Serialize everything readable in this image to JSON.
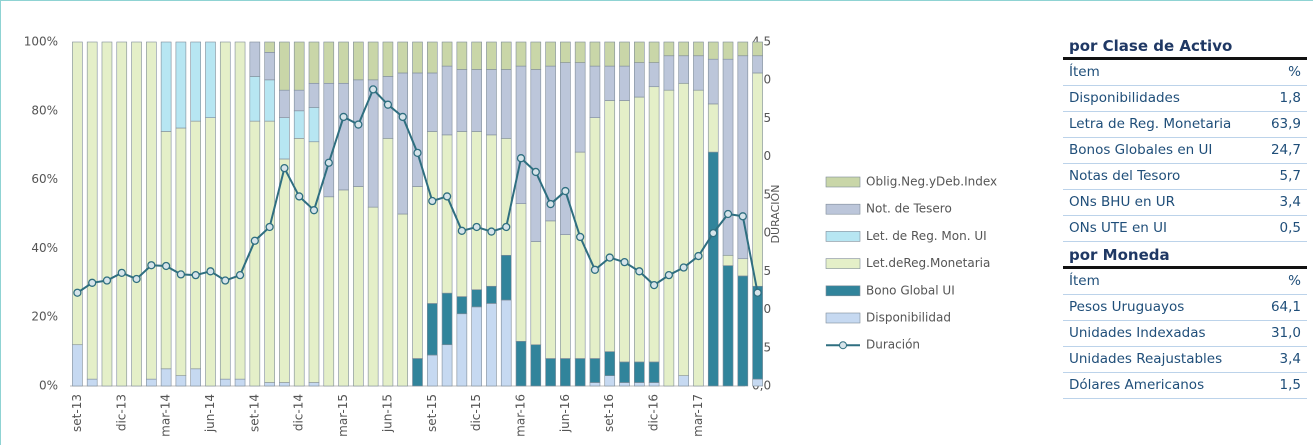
{
  "chart_data": {
    "type": "bar",
    "categories": [
      "set-13",
      null,
      null,
      "dic-13",
      null,
      null,
      "mar-14",
      null,
      null,
      "jun-14",
      null,
      null,
      "set-14",
      null,
      null,
      "dic-14",
      null,
      null,
      "mar-15",
      null,
      null,
      "jun-15",
      null,
      null,
      "set-15",
      null,
      null,
      "dic-15",
      null,
      null,
      "mar-16",
      null,
      null,
      "jun-16",
      null,
      null,
      "set-16",
      null,
      null,
      "dic-16",
      null,
      null,
      "mar-17",
      null,
      null,
      null,
      null
    ],
    "series": [
      {
        "name": "Disponibilidad",
        "color": "#c6d9f1",
        "values": [
          12,
          2,
          0,
          0,
          0,
          2,
          5,
          3,
          5,
          0,
          2,
          2,
          0,
          1,
          1,
          0,
          1,
          0,
          0,
          0,
          0,
          0,
          0,
          0,
          9,
          12,
          21,
          23,
          24,
          25,
          0,
          0,
          0,
          0,
          0,
          1,
          3,
          1,
          1,
          1,
          0,
          3,
          0,
          0,
          0,
          0,
          2
        ]
      },
      {
        "name": "Bono Global UI",
        "color": "#31849b",
        "values": [
          0,
          0,
          0,
          0,
          0,
          0,
          0,
          0,
          0,
          0,
          0,
          0,
          0,
          0,
          0,
          0,
          0,
          0,
          0,
          0,
          0,
          0,
          0,
          8,
          15,
          15,
          5,
          5,
          5,
          13,
          13,
          12,
          8,
          8,
          8,
          7,
          7,
          6,
          6,
          6,
          0,
          0,
          0,
          68,
          35,
          32,
          27
        ]
      },
      {
        "name": "Let.deReg.Monetaria",
        "color": "#e4efc8",
        "values": [
          88,
          98,
          100,
          100,
          100,
          98,
          69,
          72,
          72,
          78,
          98,
          98,
          77,
          76,
          65,
          72,
          70,
          55,
          57,
          58,
          52,
          72,
          50,
          50,
          50,
          46,
          48,
          46,
          44,
          34,
          40,
          30,
          40,
          36,
          60,
          70,
          73,
          76,
          77,
          80,
          86,
          85,
          86,
          14,
          3,
          5,
          62
        ]
      },
      {
        "name": "Let. de Reg. Mon. UI",
        "color": "#b7e6f2",
        "values": [
          0,
          0,
          0,
          0,
          0,
          0,
          26,
          25,
          23,
          22,
          0,
          0,
          13,
          12,
          12,
          8,
          10,
          0,
          0,
          0,
          0,
          0,
          0,
          0,
          0,
          0,
          0,
          0,
          0,
          0,
          0,
          0,
          0,
          0,
          0,
          0,
          0,
          0,
          0,
          0,
          0,
          0,
          0,
          0,
          0,
          0,
          0
        ]
      },
      {
        "name": "Not. de Tesero",
        "color": "#bcc6da",
        "values": [
          0,
          0,
          0,
          0,
          0,
          0,
          0,
          0,
          0,
          0,
          0,
          0,
          10,
          8,
          8,
          6,
          7,
          33,
          31,
          31,
          37,
          18,
          41,
          33,
          17,
          20,
          18,
          18,
          19,
          20,
          40,
          50,
          45,
          50,
          26,
          15,
          10,
          10,
          10,
          7,
          10,
          8,
          10,
          13,
          57,
          59,
          5
        ]
      },
      {
        "name": "Oblig.Neg.yDeb.Index",
        "color": "#c9d6a8",
        "values": [
          0,
          0,
          0,
          0,
          0,
          0,
          0,
          0,
          0,
          0,
          0,
          0,
          0,
          3,
          14,
          14,
          12,
          12,
          12,
          11,
          11,
          10,
          9,
          9,
          9,
          7,
          8,
          8,
          8,
          8,
          7,
          8,
          7,
          6,
          6,
          7,
          7,
          7,
          6,
          6,
          4,
          4,
          4,
          5,
          5,
          4,
          4
        ]
      },
      {
        "name": "Duración",
        "color": "#2f6f80",
        "axis": "y2",
        "values": [
          1.22,
          1.35,
          1.38,
          1.48,
          1.4,
          1.58,
          1.57,
          1.46,
          1.45,
          1.5,
          1.38,
          1.45,
          1.9,
          2.08,
          2.85,
          2.48,
          2.3,
          2.92,
          3.52,
          3.42,
          3.88,
          3.68,
          3.52,
          3.05,
          2.42,
          2.48,
          2.03,
          2.08,
          2.02,
          2.08,
          2.98,
          2.8,
          2.38,
          2.55,
          1.95,
          1.52,
          1.68,
          1.62,
          1.5,
          1.32,
          1.45,
          1.55,
          1.7,
          2.0,
          2.25,
          2.22,
          1.22
        ]
      }
    ],
    "y2label": "DURACIÓN",
    "ylim": [
      0,
      100
    ],
    "yticks": [
      {
        "value": 0,
        "label": "0%"
      },
      {
        "value": 20,
        "label": "20%"
      },
      {
        "value": 40,
        "label": "40%"
      },
      {
        "value": 60,
        "label": "60%"
      },
      {
        "value": 80,
        "label": "80%"
      },
      {
        "value": 100,
        "label": "100%"
      }
    ],
    "y2lim": [
      0,
      4.5
    ],
    "y2ticks": [
      {
        "value": 0,
        "label": "0,0"
      },
      {
        "value": 0.5,
        "label": "0,5"
      },
      {
        "value": 1,
        "label": "1,0"
      },
      {
        "value": 1.5,
        "label": "1,5"
      },
      {
        "value": 2,
        "label": "2,0"
      },
      {
        "value": 2.5,
        "label": "2,5"
      },
      {
        "value": 3,
        "label": "3,0"
      },
      {
        "value": 3.5,
        "label": "3,5"
      },
      {
        "value": 4,
        "label": "4,0"
      },
      {
        "value": 4.5,
        "label": "4,5"
      }
    ],
    "grid": false,
    "legend": "right"
  },
  "tables": [
    {
      "title": "por Clase de Activo",
      "header": [
        "Ítem",
        "%"
      ],
      "rows": [
        [
          "Disponibilidades",
          "1,8"
        ],
        [
          "Letra de Reg. Monetaria",
          "63,9"
        ],
        [
          "Bonos Globales en UI",
          "24,7"
        ],
        [
          "Notas del Tesoro",
          "5,7"
        ],
        [
          "ONs BHU en UR",
          "3,4"
        ],
        [
          "ONs UTE en UI",
          "0,5"
        ]
      ]
    },
    {
      "title": "por Moneda",
      "header": [
        "Ítem",
        "%"
      ],
      "rows": [
        [
          "Pesos Uruguayos",
          "64,1"
        ],
        [
          "Unidades Indexadas",
          "31,0"
        ],
        [
          "Unidades Reajustables",
          "3,4"
        ],
        [
          "Dólares Americanos",
          "1,5"
        ]
      ]
    }
  ]
}
